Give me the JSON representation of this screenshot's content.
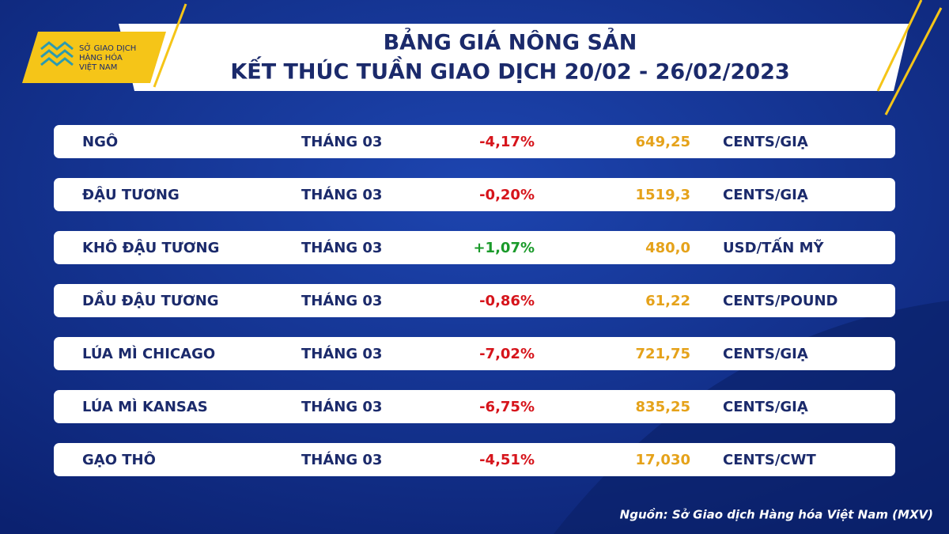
{
  "header": {
    "logo": [
      "SỞ GIAO DỊCH",
      "HÀNG HÓA",
      "VIỆT NAM"
    ],
    "title": [
      "BẢNG GIÁ NÔNG SẢN",
      "KẾT THÚC TUẦN GIAO DỊCH 20/02 - 26/02/2023"
    ]
  },
  "table": {
    "rows": [
      [
        "NGÔ",
        "THÁNG 03",
        "-4,17%",
        "649,25",
        "CENTS/GIẠ"
      ],
      [
        "ĐẬU TƯƠNG",
        "THÁNG 03",
        "-0,20%",
        "1519,3",
        "CENTS/GIẠ"
      ],
      [
        "KHÔ ĐẬU TƯƠNG",
        "THÁNG 03",
        "+1,07%",
        "480,0",
        "USD/TẤN MỸ"
      ],
      [
        "DẦU ĐẬU TƯƠNG",
        "THÁNG 03",
        "-0,86%",
        "61,22",
        "CENTS/POUND"
      ],
      [
        "LÚA MÌ CHICAGO",
        "THÁNG 03",
        "-7,02%",
        "721,75",
        "CENTS/GIẠ"
      ],
      [
        "LÚA MÌ KANSAS",
        "THÁNG 03",
        "-6,75%",
        "835,25",
        "CENTS/GIẠ"
      ],
      [
        "GẠO THÔ",
        "THÁNG 03",
        "-4,51%",
        "17,030",
        "CENTS/CWT"
      ]
    ]
  },
  "footer": {
    "source": "Nguồn: Sở Giao dịch Hàng hóa Việt Nam (MXV)"
  }
}
